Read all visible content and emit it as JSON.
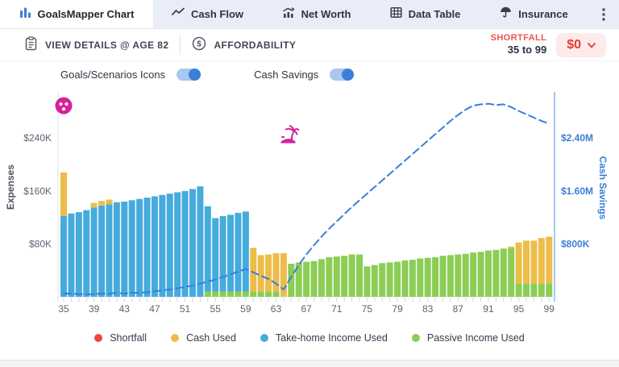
{
  "tabs": {
    "items": [
      {
        "label": "GoalsMapper Chart",
        "icon": "bar-chart-icon",
        "active": true
      },
      {
        "label": "Cash Flow",
        "icon": "trend-line-icon",
        "active": false
      },
      {
        "label": "Net Worth",
        "icon": "growth-chart-icon",
        "active": false
      },
      {
        "label": "Data Table",
        "icon": "table-grid-icon",
        "active": false
      },
      {
        "label": "Insurance",
        "icon": "umbrella-icon",
        "active": false
      }
    ],
    "menu_icon": "kebab-menu-icon"
  },
  "toolbar": {
    "view_details_label": "VIEW DETAILS @ AGE 82",
    "affordability_label": "AFFORDABILITY",
    "shortfall_label": "SHORTFALL",
    "shortfall_range": "35 to 99",
    "shortfall_amount": "$0"
  },
  "toggles": {
    "goals_icons_label": "Goals/Scenarios Icons",
    "goals_icons_on": true,
    "cash_savings_label": "Cash Savings",
    "cash_savings_on": true
  },
  "chart_data": {
    "type": "bar",
    "x_age_min": 35,
    "x_age_max": 99,
    "x_tick_labels": [
      35,
      39,
      43,
      47,
      51,
      55,
      59,
      63,
      67,
      71,
      75,
      79,
      83,
      87,
      91,
      95,
      99
    ],
    "left_axis": {
      "label": "Expenses",
      "ticks": [
        "$80K",
        "$160K",
        "$240K"
      ],
      "tick_values": [
        80,
        160,
        240
      ],
      "units": "thousands_usd"
    },
    "right_axis": {
      "label": "Cash Savings",
      "ticks": [
        "$800K",
        "$1.60M",
        "$2.40M"
      ],
      "tick_values": [
        0.8,
        1.6,
        2.4
      ],
      "units": "millions_usd"
    },
    "series": [
      {
        "name": "Passive Income Used",
        "color": "#8bcd55",
        "values": [
          0,
          0,
          0,
          0,
          0,
          0,
          0,
          0,
          0,
          0,
          0,
          0,
          0,
          0,
          0,
          0,
          0,
          0,
          0,
          8,
          8,
          8,
          8,
          8,
          8,
          8,
          8,
          8,
          8,
          0,
          50,
          52,
          53,
          54,
          57,
          60,
          61,
          62,
          64,
          64,
          46,
          48,
          51,
          52,
          53,
          55,
          56,
          58,
          59,
          60,
          62,
          63,
          64,
          65,
          67,
          68,
          70,
          71,
          73,
          74,
          20,
          20,
          20,
          20,
          20
        ]
      },
      {
        "name": "Take-home Income Used",
        "color": "#45abdc",
        "values": [
          122,
          126,
          128,
          131,
          135,
          138,
          140,
          143,
          144,
          146,
          148,
          150,
          152,
          154,
          156,
          158,
          160,
          163,
          167,
          129,
          111,
          114,
          116,
          119,
          121,
          0,
          0,
          0,
          0,
          0,
          0,
          0,
          0,
          0,
          0,
          0,
          0,
          0,
          0,
          0,
          0,
          0,
          0,
          0,
          0,
          0,
          0,
          0,
          0,
          0,
          0,
          0,
          0,
          0,
          0,
          0,
          0,
          0,
          0,
          0,
          0,
          0,
          0,
          0,
          0
        ]
      },
      {
        "name": "Cash Used",
        "color": "#edbd4a",
        "values": [
          66,
          0,
          0,
          0,
          7,
          7,
          7,
          0,
          0,
          0,
          0,
          0,
          0,
          0,
          0,
          0,
          0,
          0,
          0,
          0,
          0,
          0,
          0,
          0,
          0,
          66,
          55,
          56,
          58,
          66,
          0,
          0,
          0,
          0,
          0,
          0,
          0,
          0,
          0,
          0,
          0,
          0,
          0,
          0,
          0,
          0,
          0,
          0,
          0,
          0,
          0,
          0,
          0,
          0,
          0,
          0,
          0,
          0,
          0,
          2,
          62,
          65,
          65,
          69,
          71
        ]
      }
    ],
    "line": {
      "name": "Cash Savings",
      "color": "#3b7ce0",
      "style": "dashed",
      "values_millions": [
        0.05,
        0.05,
        0.04,
        0.04,
        0.04,
        0.05,
        0.05,
        0.06,
        0.05,
        0.06,
        0.06,
        0.07,
        0.08,
        0.1,
        0.11,
        0.13,
        0.15,
        0.17,
        0.2,
        0.23,
        0.26,
        0.3,
        0.34,
        0.38,
        0.42,
        0.37,
        0.32,
        0.27,
        0.2,
        0.11,
        0.3,
        0.48,
        0.64,
        0.78,
        0.91,
        1.03,
        1.14,
        1.25,
        1.36,
        1.46,
        1.56,
        1.66,
        1.76,
        1.86,
        1.96,
        2.06,
        2.16,
        2.26,
        2.36,
        2.46,
        2.56,
        2.66,
        2.75,
        2.83,
        2.89,
        2.91,
        2.92,
        2.9,
        2.91,
        2.87,
        2.81,
        2.76,
        2.71,
        2.66,
        2.62
      ]
    },
    "legend": [
      {
        "label": "Shortfall",
        "color": "#ef4444"
      },
      {
        "label": "Cash Used",
        "color": "#edbd4a"
      },
      {
        "label": "Take-home Income Used",
        "color": "#45abdc"
      },
      {
        "label": "Passive Income Used",
        "color": "#8bcd55"
      }
    ],
    "goal_icon_color": "#d6219c",
    "goal_icons": [
      {
        "name": "ball-goal-icon",
        "shape": "ball",
        "age": 35,
        "expenses_level": 289
      },
      {
        "name": "beach-retirement-goal-icon",
        "shape": "palm",
        "age": 64.6,
        "expenses_level": 247
      }
    ]
  }
}
